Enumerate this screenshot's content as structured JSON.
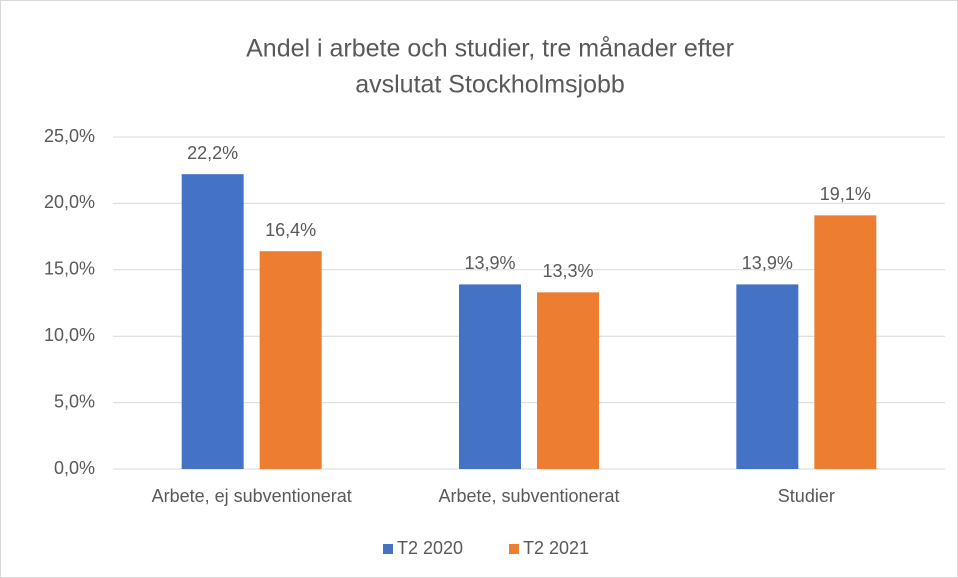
{
  "chart_data": {
    "type": "bar",
    "title": [
      "Andel i arbete och studier, tre månader efter",
      "avslutat  Stockholmsjobb"
    ],
    "categories": [
      "Arbete, ej subventionerat",
      "Arbete, subventionerat",
      "Studier"
    ],
    "series": [
      {
        "name": "T2 2020",
        "color": "#4472c4",
        "values": [
          22.2,
          13.9,
          13.9
        ],
        "value_labels": [
          "22,2%",
          "13,9%",
          "13,9%"
        ]
      },
      {
        "name": "T2 2021",
        "color": "#ed7d31",
        "values": [
          16.4,
          13.3,
          19.1
        ],
        "value_labels": [
          "16,4%",
          "13,3%",
          "19,1%"
        ]
      }
    ],
    "ylim": [
      0,
      25
    ],
    "yticks": [
      {
        "value": 0,
        "label": "0,0%"
      },
      {
        "value": 5,
        "label": "5,0%"
      },
      {
        "value": 10,
        "label": "10,0%"
      },
      {
        "value": 15,
        "label": "15,0%"
      },
      {
        "value": 20,
        "label": "20,0%"
      },
      {
        "value": 25,
        "label": "25,0%"
      }
    ],
    "grid": true,
    "legend": "bottom"
  }
}
